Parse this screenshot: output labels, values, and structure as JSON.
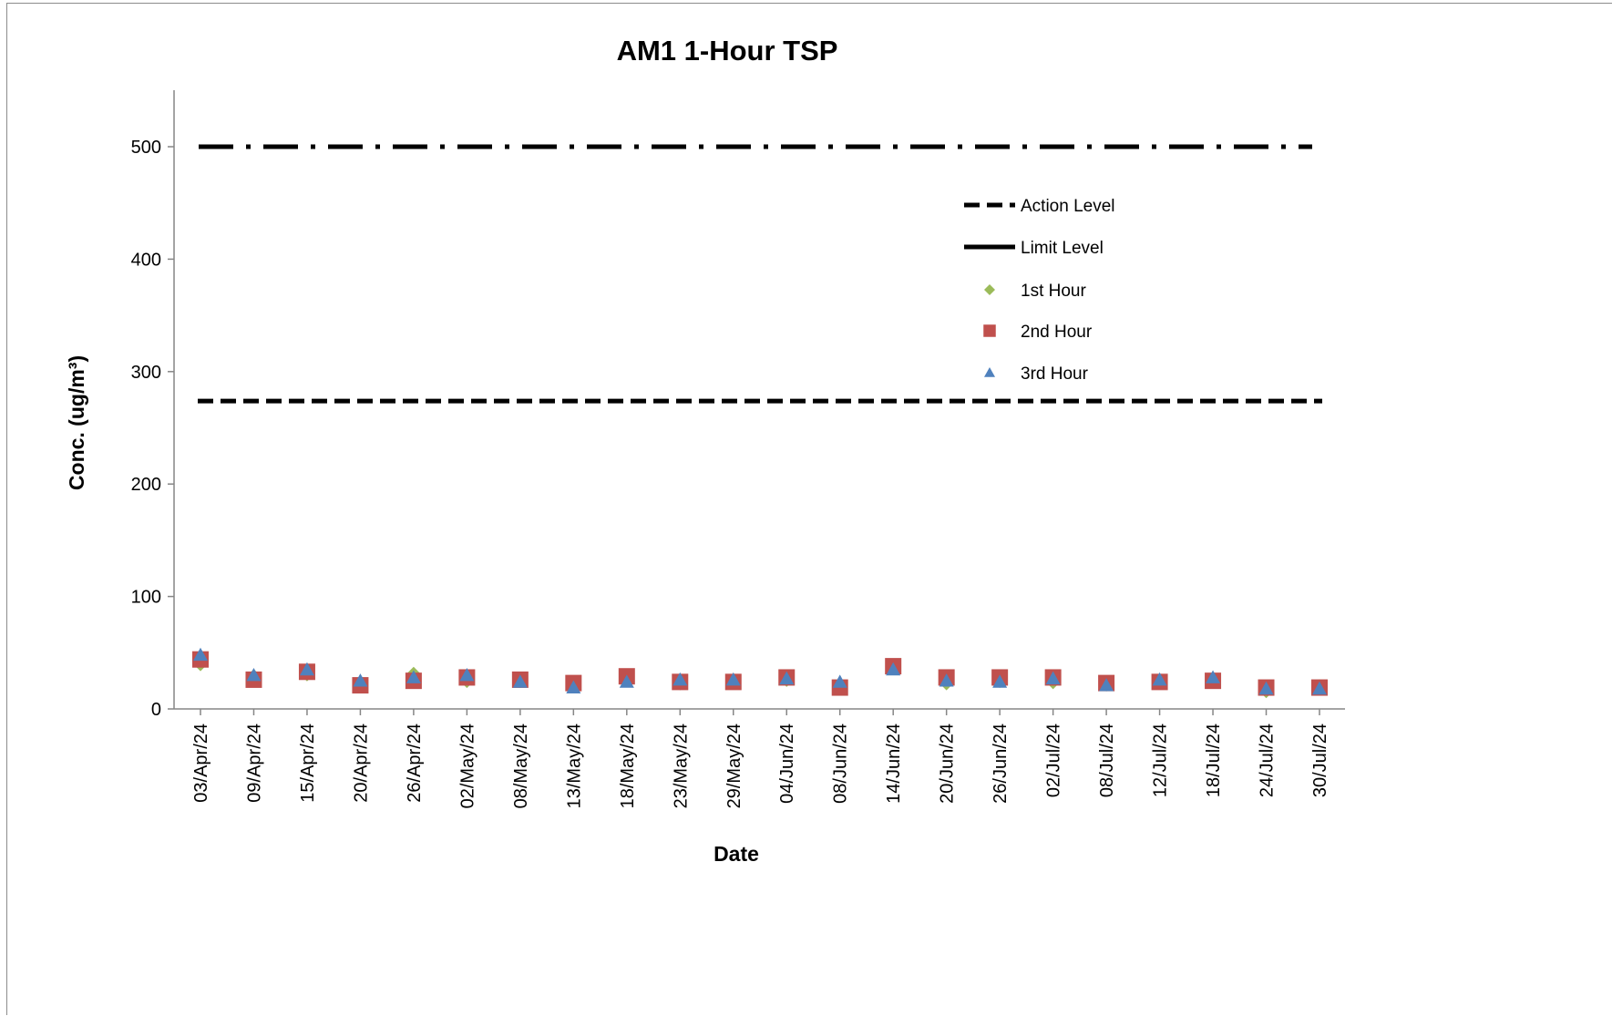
{
  "chart_data": {
    "type": "scatter",
    "title": "AM1 1-Hour TSP",
    "xlabel": "Date",
    "ylabel": "Conc. (ug/m³)",
    "ylim": [
      0,
      550
    ],
    "yticks": [
      0,
      100,
      200,
      300,
      400,
      500
    ],
    "grid": false,
    "legend_position": "top-right",
    "categories": [
      "03/Apr/24",
      "09/Apr/24",
      "15/Apr/24",
      "20/Apr/24",
      "26/Apr/24",
      "02/May/24",
      "08/May/24",
      "13/May/24",
      "18/May/24",
      "23/May/24",
      "29/May/24",
      "04/Jun/24",
      "08/Jun/24",
      "14/Jun/24",
      "20/Jun/24",
      "26/Jun/24",
      "02/Jul/24",
      "08/Jul/24",
      "12/Jul/24",
      "18/Jul/24",
      "24/Jul/24",
      "30/Jul/24"
    ],
    "reference_lines": [
      {
        "name": "Action Level",
        "value": 273.8,
        "style": "dashed",
        "color": "#000000"
      },
      {
        "name": "Limit Level",
        "value": 500,
        "style": "dash-dot",
        "color": "#000000"
      }
    ],
    "series": [
      {
        "name": "1st Hour",
        "marker": "diamond",
        "color": "#9bbb59",
        "values": [
          40,
          29,
          31,
          23,
          31,
          25,
          25,
          21,
          26,
          23,
          24,
          26,
          21,
          37,
          23,
          25,
          24,
          22,
          25,
          25,
          16,
          20
        ]
      },
      {
        "name": "2nd Hour",
        "marker": "square",
        "color": "#c0504d",
        "values": [
          44,
          26,
          33,
          21,
          25,
          28,
          26,
          23,
          29,
          24,
          24,
          28,
          19,
          38,
          28,
          28,
          28,
          23,
          24,
          25,
          19,
          19
        ]
      },
      {
        "name": "3rd Hour",
        "marker": "triangle",
        "color": "#4f81bd",
        "values": [
          48,
          30,
          35,
          25,
          28,
          30,
          24,
          19,
          24,
          26,
          26,
          27,
          24,
          35,
          25,
          24,
          27,
          21,
          26,
          28,
          18,
          18
        ]
      }
    ]
  }
}
